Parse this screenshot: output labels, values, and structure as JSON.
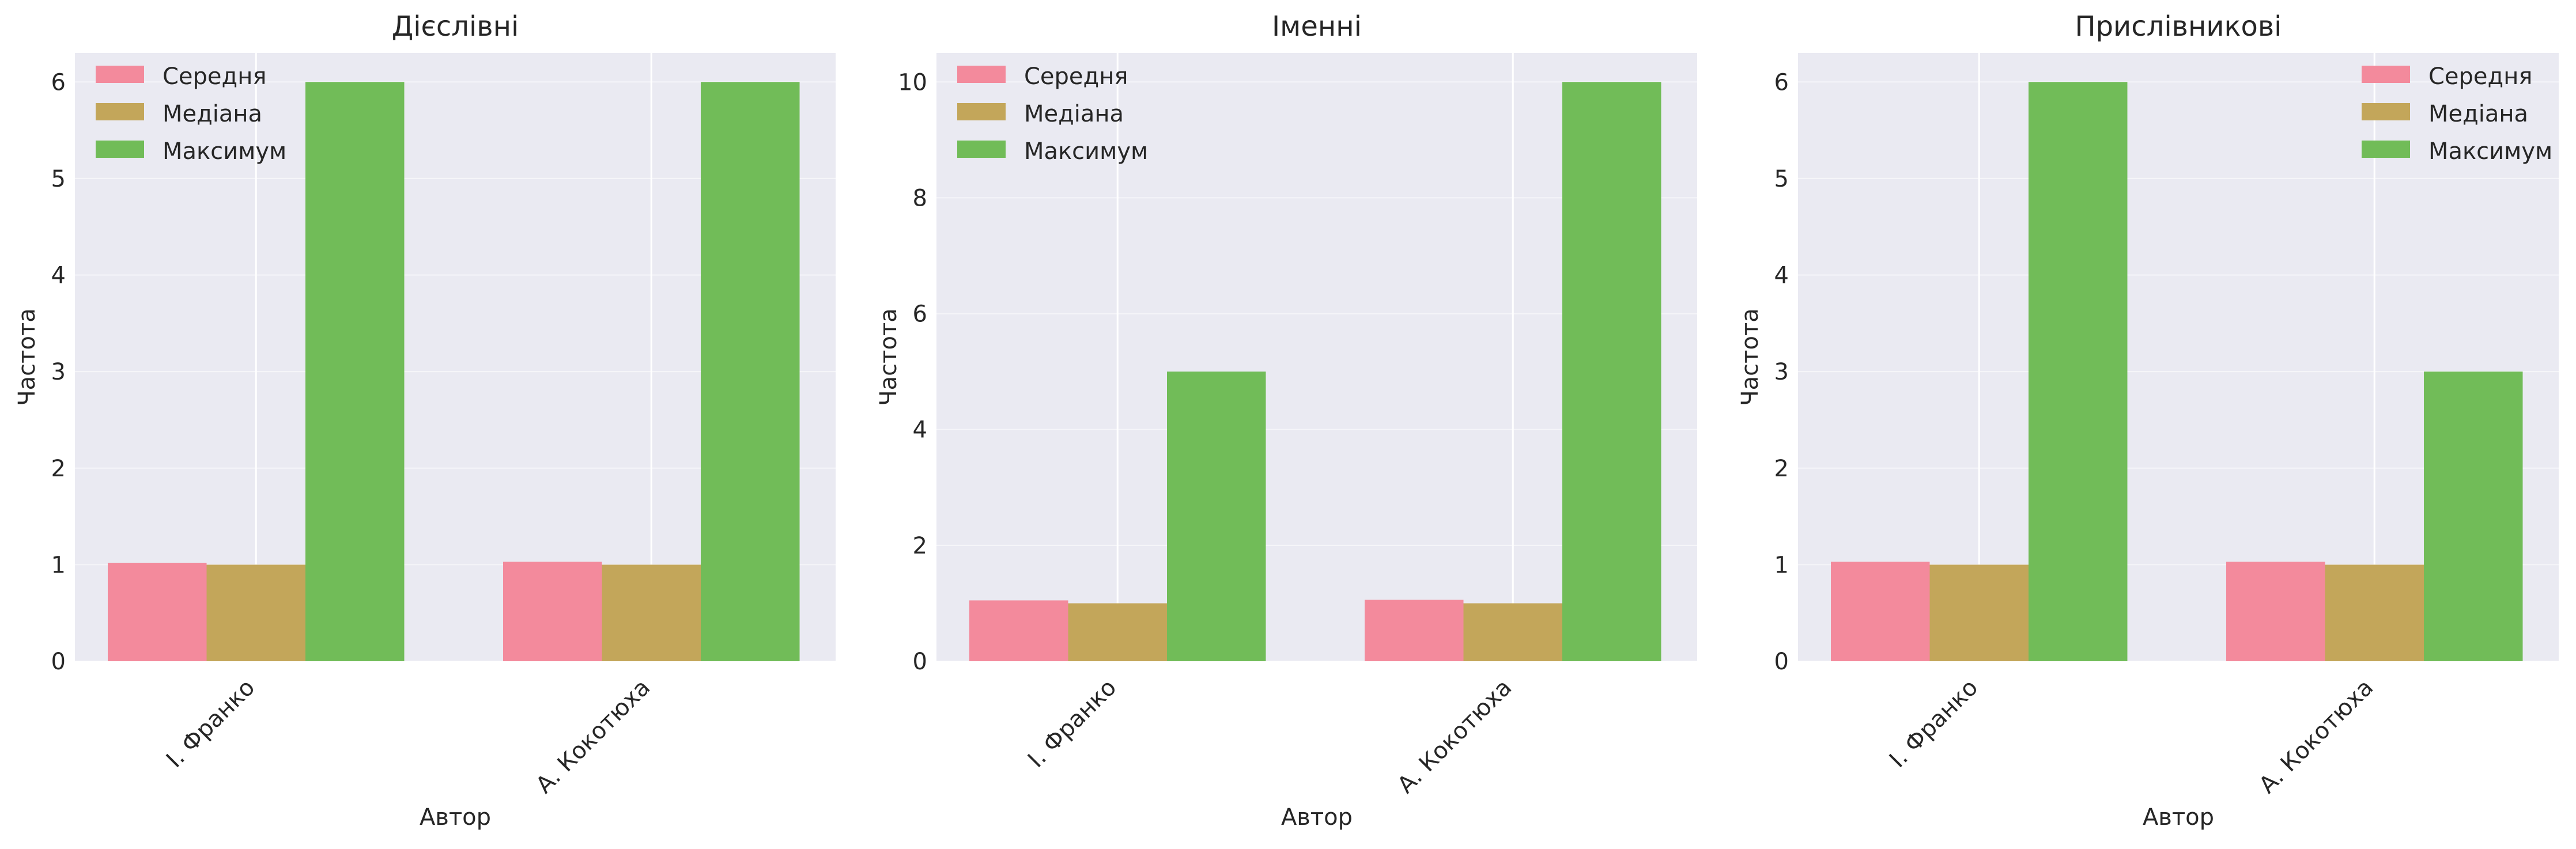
{
  "chart_data": [
    {
      "type": "bar",
      "title": "Дієслівні",
      "xlabel": "Автор",
      "ylabel": "Частота",
      "categories": [
        "І. Франко",
        "А. Кокотюха"
      ],
      "series": [
        {
          "name": "Середня",
          "color": "#f38a9c",
          "values": [
            1.02,
            1.03
          ]
        },
        {
          "name": "Медіана",
          "color": "#c3a65a",
          "values": [
            1.0,
            1.0
          ]
        },
        {
          "name": "Максимум",
          "color": "#71bc58",
          "values": [
            6,
            6
          ]
        }
      ],
      "ylim": [
        0,
        6.3
      ],
      "yticks": [
        0,
        1,
        2,
        3,
        4,
        5,
        6
      ],
      "legend_position": "top-left",
      "grid": true
    },
    {
      "type": "bar",
      "title": "Іменні",
      "xlabel": "Автор",
      "ylabel": "Частота",
      "categories": [
        "І. Франко",
        "А. Кокотюха"
      ],
      "series": [
        {
          "name": "Середня",
          "color": "#f38a9c",
          "values": [
            1.05,
            1.06
          ]
        },
        {
          "name": "Медіана",
          "color": "#c3a65a",
          "values": [
            1.0,
            1.0
          ]
        },
        {
          "name": "Максимум",
          "color": "#71bc58",
          "values": [
            5,
            10
          ]
        }
      ],
      "ylim": [
        0,
        10.5
      ],
      "yticks": [
        0,
        2,
        4,
        6,
        8,
        10
      ],
      "legend_position": "top-left",
      "grid": true
    },
    {
      "type": "bar",
      "title": "Прислівникові",
      "xlabel": "Автор",
      "ylabel": "Частота",
      "categories": [
        "І. Франко",
        "А. Кокотюха"
      ],
      "series": [
        {
          "name": "Середня",
          "color": "#f38a9c",
          "values": [
            1.03,
            1.03
          ]
        },
        {
          "name": "Медіана",
          "color": "#c3a65a",
          "values": [
            1.0,
            1.0
          ]
        },
        {
          "name": "Максимум",
          "color": "#71bc58",
          "values": [
            6,
            3
          ]
        }
      ],
      "ylim": [
        0,
        6.3
      ],
      "yticks": [
        0,
        1,
        2,
        3,
        4,
        5,
        6
      ],
      "legend_position": "top-right",
      "grid": true
    }
  ]
}
